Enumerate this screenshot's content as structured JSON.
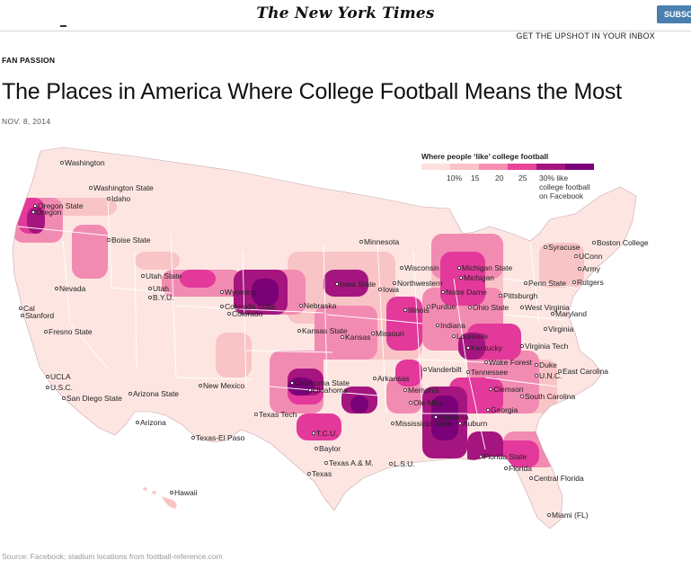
{
  "header": {
    "logo": "The New York Times",
    "subscribe_label": "SUBSCRIBE",
    "upshot_link": "GET THE UPSHOT IN YOUR INBOX"
  },
  "article": {
    "kicker": "FAN PASSION",
    "headline": "The Places in America Where College Football Means the Most",
    "date": "NOV. 8, 2014",
    "source": "Source: Facebook; stadium locations from football-reference.com"
  },
  "legend": {
    "title": "Where people ‘like’ college football",
    "ticks": [
      "10%",
      "15",
      "20",
      "25"
    ],
    "colors": [
      "#fde0dd",
      "#fbc3c7",
      "#f78fb3",
      "#e8459a",
      "#a5157f",
      "#7a0177"
    ],
    "note": "30% like college football on Facebook"
  },
  "colors": {
    "low": "#fde6e2",
    "mid_low": "#f9c4c6",
    "mid": "#f28bb2",
    "mid_high": "#e2399a",
    "high": "#a5157f",
    "very_high": "#7a0177",
    "state_border": "#ffffff",
    "outline": "#c9a8b0"
  },
  "map": {
    "cities": [
      {
        "name": "Washington"
      },
      {
        "name": "Washington State"
      },
      {
        "name": "Idaho"
      },
      {
        "name": "Oregon State"
      },
      {
        "name": "Oregon"
      },
      {
        "name": "Boise State"
      },
      {
        "name": "Nevada"
      },
      {
        "name": "Utah State"
      },
      {
        "name": "Utah"
      },
      {
        "name": "B.Y.U."
      },
      {
        "name": "Wyoming"
      },
      {
        "name": "Colorado State"
      },
      {
        "name": "Colorado"
      },
      {
        "name": "Cal"
      },
      {
        "name": "Stanford"
      },
      {
        "name": "Fresno State"
      },
      {
        "name": "UCLA"
      },
      {
        "name": "U.S.C."
      },
      {
        "name": "San Diego State"
      },
      {
        "name": "Arizona State"
      },
      {
        "name": "Arizona"
      },
      {
        "name": "New Mexico"
      },
      {
        "name": "Texas-El Paso"
      },
      {
        "name": "Texas Tech"
      },
      {
        "name": "Oklahoma State"
      },
      {
        "name": "Oklahoma"
      },
      {
        "name": "T.C.U."
      },
      {
        "name": "Baylor"
      },
      {
        "name": "Texas A.& M."
      },
      {
        "name": "Texas"
      },
      {
        "name": "Kansas State"
      },
      {
        "name": "Kansas"
      },
      {
        "name": "Missouri"
      },
      {
        "name": "Nebraska"
      },
      {
        "name": "Iowa State"
      },
      {
        "name": "Iowa"
      },
      {
        "name": "Minnesota"
      },
      {
        "name": "Wisconsin"
      },
      {
        "name": "Northwestern"
      },
      {
        "name": "Illinois"
      },
      {
        "name": "Purdue"
      },
      {
        "name": "Notre Dame"
      },
      {
        "name": "Indiana"
      },
      {
        "name": "Michigan State"
      },
      {
        "name": "Michigan"
      },
      {
        "name": "Ohio State"
      },
      {
        "name": "Pittsburgh"
      },
      {
        "name": "Penn State"
      },
      {
        "name": "West Virginia"
      },
      {
        "name": "Maryland"
      },
      {
        "name": "Virginia"
      },
      {
        "name": "Virginia Tech"
      },
      {
        "name": "Louisville"
      },
      {
        "name": "Kentucky"
      },
      {
        "name": "Vanderbilt"
      },
      {
        "name": "Tennessee"
      },
      {
        "name": "Wake Forest"
      },
      {
        "name": "Duke"
      },
      {
        "name": "U.N.C."
      },
      {
        "name": "East Carolina"
      },
      {
        "name": "Clemson"
      },
      {
        "name": "South Carolina"
      },
      {
        "name": "Georgia"
      },
      {
        "name": "Auburn"
      },
      {
        "name": "Alabama"
      },
      {
        "name": "Mississippi State"
      },
      {
        "name": "Ole Miss"
      },
      {
        "name": "Memphis"
      },
      {
        "name": "Arkansas"
      },
      {
        "name": "L.S.U."
      },
      {
        "name": "Florida State"
      },
      {
        "name": "Florida"
      },
      {
        "name": "Central Florida"
      },
      {
        "name": "Miami (FL)"
      },
      {
        "name": "Syracuse"
      },
      {
        "name": "Boston College"
      },
      {
        "name": "UConn"
      },
      {
        "name": "Army"
      },
      {
        "name": "Rutgers"
      },
      {
        "name": "Hawaii"
      }
    ]
  }
}
